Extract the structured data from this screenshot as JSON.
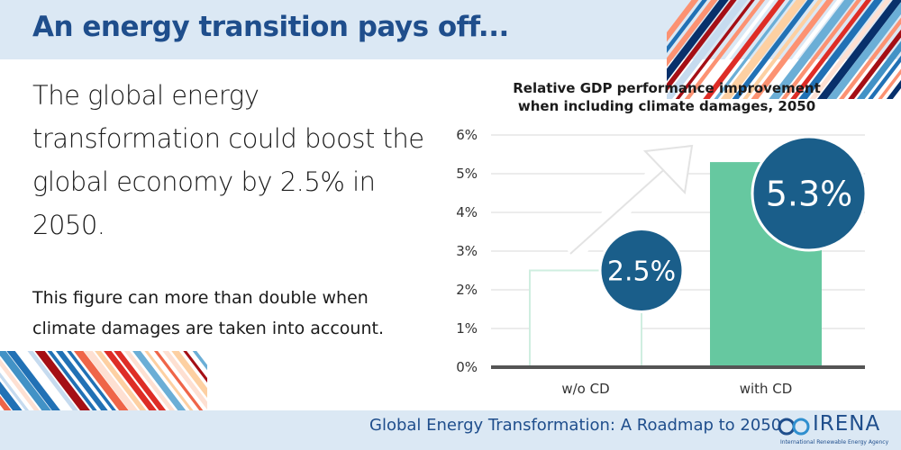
{
  "header": {
    "title": "An energy transition pays off..."
  },
  "main": {
    "headline": "The global energy transformation could boost the global economy by 2.5% in 2050.",
    "subtext": "This figure can more than double when climate damages are taken into account."
  },
  "footer": {
    "report_title": "Global Energy Transformation: A Roadmap to 2050",
    "logo_name": "IRENA",
    "logo_tagline": "International Renewable Energy Agency"
  },
  "colors": {
    "brand_blue": "#1f4e8c",
    "band_bg": "#dbe8f4",
    "bubble": "#1a5e8a",
    "bar_with_cd": "#66c8a0",
    "bar_outline": "#cfeee0",
    "axis": "#555555"
  },
  "chart_data": {
    "type": "bar",
    "title": "Relative GDP performance improvement when including climate damages, 2050",
    "title_lines": [
      "Relative GDP performance improvement",
      "when including climate damages, 2050"
    ],
    "categories": [
      "w/o CD",
      "with CD"
    ],
    "values": [
      2.5,
      5.3
    ],
    "data_labels": [
      "2.5%",
      "5.3%"
    ],
    "ylim": [
      0,
      6
    ],
    "yticks": [
      "0%",
      "1%",
      "2%",
      "3%",
      "4%",
      "5%",
      "6%"
    ],
    "grid": true,
    "xlabel": "",
    "ylabel": "",
    "annotation": "upward arrow from w/o CD to with CD"
  }
}
